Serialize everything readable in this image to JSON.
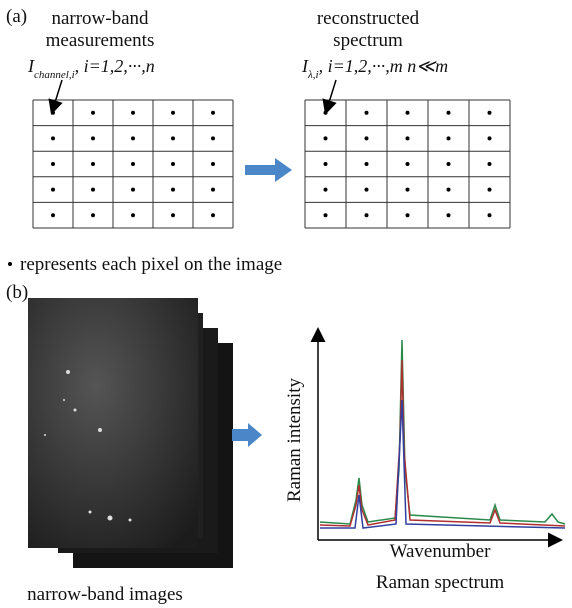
{
  "panel_a": {
    "label": "(a)",
    "left": {
      "title_lines": [
        "narrow-band",
        "measurements"
      ],
      "formula": {
        "symbol": "I",
        "subscript": "channel,i",
        "rest": ", i=1,2,···,n"
      }
    },
    "right": {
      "title_lines": [
        "reconstructed",
        "spectrum"
      ],
      "formula": {
        "symbol": "I",
        "subscript": "λ,i",
        "rest": ", i=1,2,···,m  n≪m"
      }
    },
    "legend": "represents each pixel on the image"
  },
  "panel_b": {
    "label": "(b)",
    "images_caption": "narrow-band images",
    "y_axis_label": "Raman intensity",
    "x_axis_label": "Wavenumber",
    "caption": "Raman spectrum"
  }
}
